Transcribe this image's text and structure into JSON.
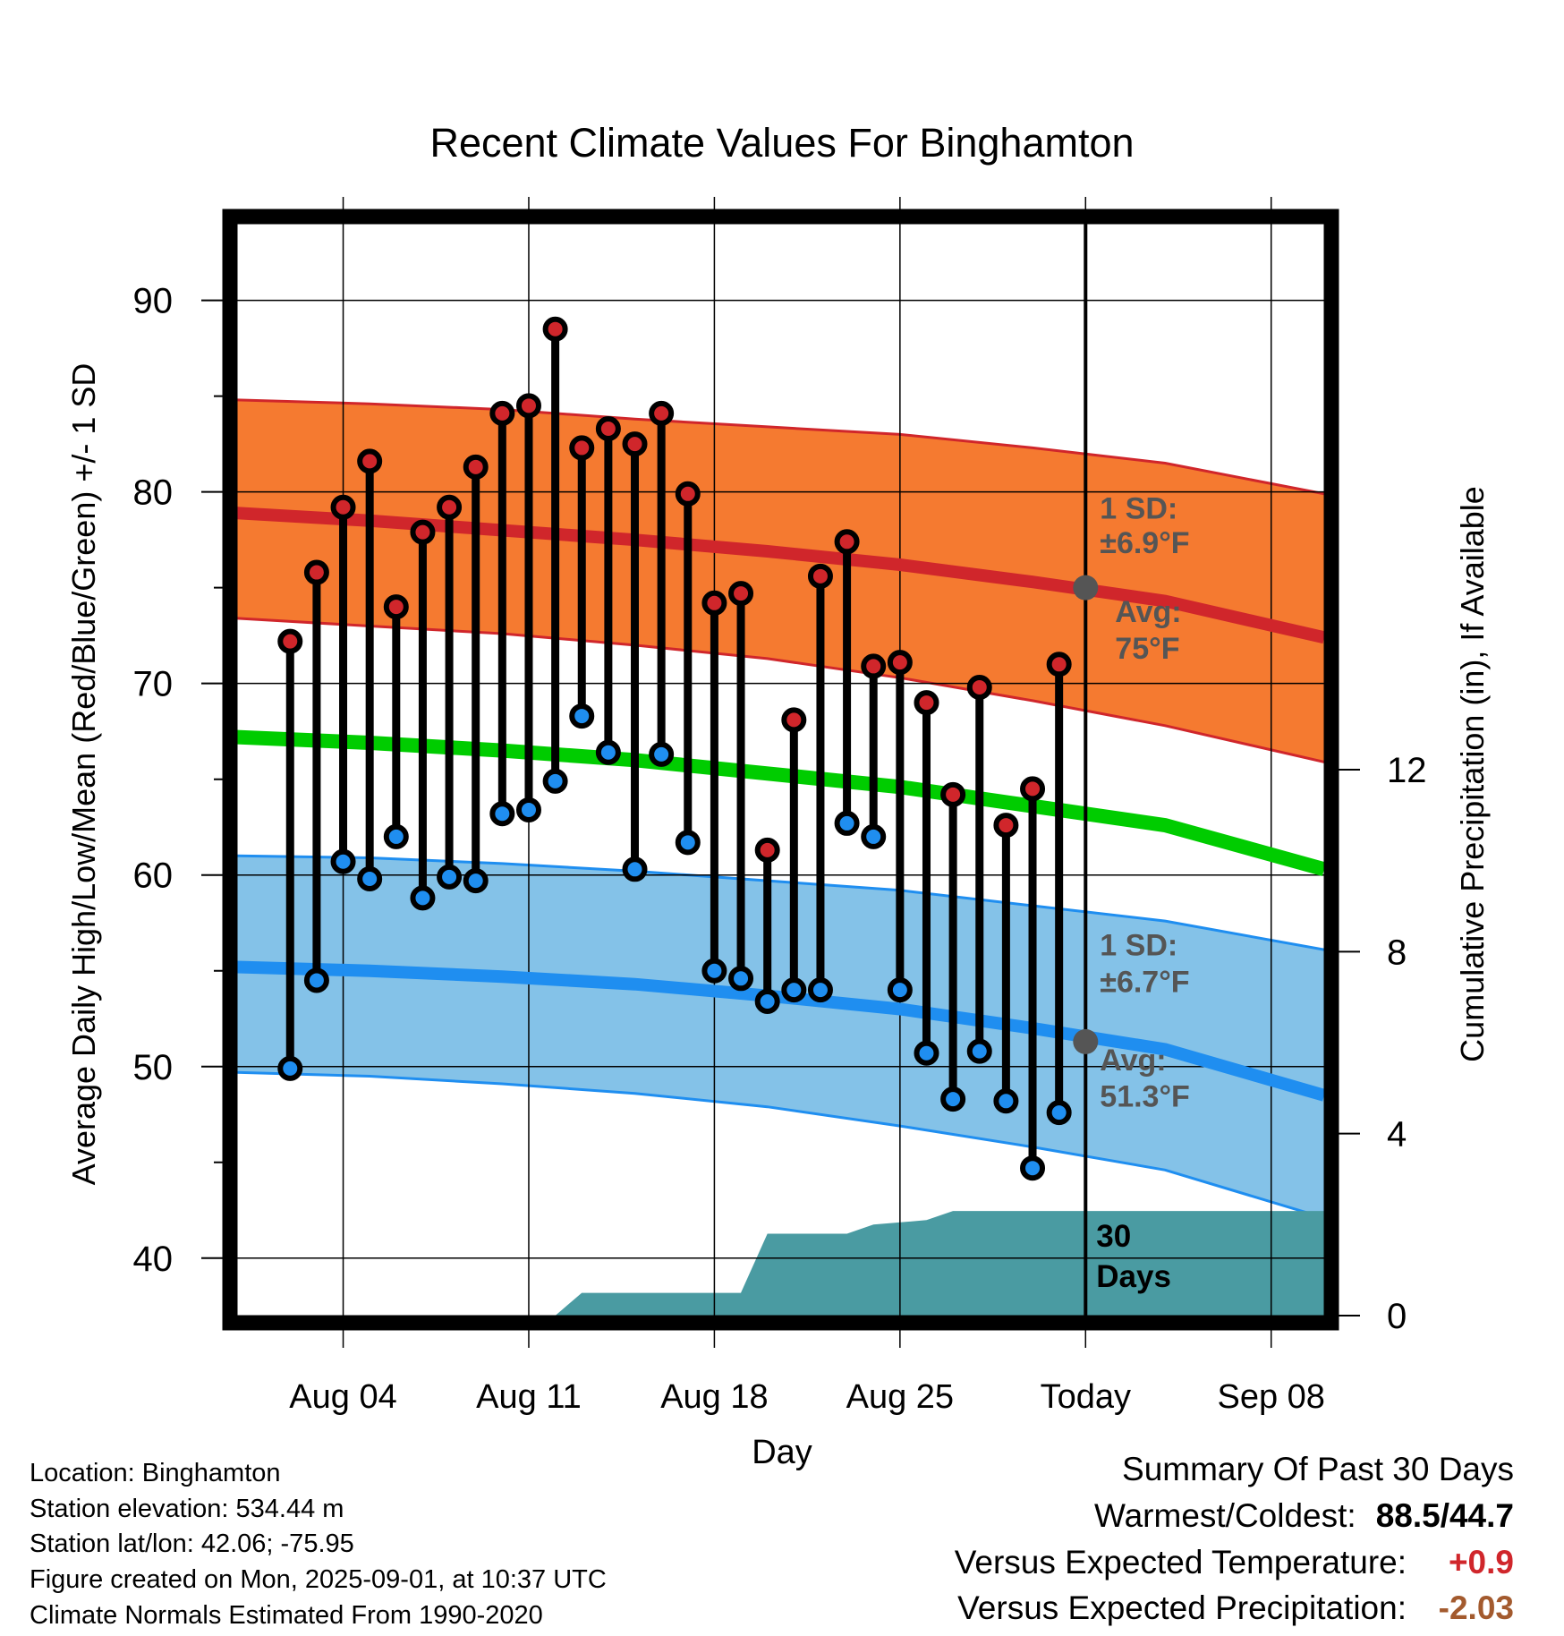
{
  "colors": {
    "high_band": "#f57a30",
    "high_line": "#d0262b",
    "low_band": "#84c2e8",
    "low_line": "#1f8ef0",
    "mean_line": "#00cc00",
    "precip": "#4a9ba2",
    "high_dot": "#d0262b",
    "low_dot": "#1f8ef0",
    "annotation": "#555555",
    "temp_anomaly": "#d0262b",
    "precip_anomaly": "#a35a2e"
  },
  "chart_data": {
    "type": "line",
    "title": "Recent Climate Values For Binghamton",
    "xlabel": "Day",
    "ylabel": "Average Daily High/Low/Mean (Red/Blue/Green) +/- 1 SD",
    "y2label": "Cumulative Precipitation (in), If Available",
    "ylim": [
      37,
      94
    ],
    "y2lim": [
      0,
      24
    ],
    "xlim": [
      "2025-07-31",
      "2025-09-10"
    ],
    "yticks": [
      40,
      50,
      60,
      70,
      80,
      90
    ],
    "y2ticks": [
      0,
      4,
      8,
      12
    ],
    "x_ticks": [
      {
        "date": "2025-08-04",
        "label": "Aug 04"
      },
      {
        "date": "2025-08-11",
        "label": "Aug 11"
      },
      {
        "date": "2025-08-18",
        "label": "Aug 18"
      },
      {
        "date": "2025-08-25",
        "label": "Aug 25"
      },
      {
        "date": "2025-09-01",
        "label": "Today"
      },
      {
        "date": "2025-09-08",
        "label": "Sep 08"
      }
    ],
    "today": "2025-09-01",
    "grid": true,
    "normals": {
      "dates": [
        "2025-07-31",
        "2025-08-05",
        "2025-08-10",
        "2025-08-15",
        "2025-08-20",
        "2025-08-25",
        "2025-08-30",
        "2025-09-04",
        "2025-09-10"
      ],
      "high_mean": [
        78.9,
        78.5,
        78.0,
        77.5,
        76.9,
        76.2,
        75.3,
        74.3,
        72.4
      ],
      "high_upper": [
        84.8,
        84.6,
        84.3,
        83.8,
        83.4,
        83.0,
        82.3,
        81.5,
        79.9
      ],
      "high_lower": [
        73.4,
        73.0,
        72.6,
        72.0,
        71.3,
        70.3,
        69.1,
        67.8,
        65.9
      ],
      "mean": [
        67.2,
        66.9,
        66.5,
        66.0,
        65.3,
        64.6,
        63.6,
        62.6,
        60.3
      ],
      "low_mean": [
        55.2,
        55.0,
        54.7,
        54.3,
        53.7,
        53.0,
        52.0,
        50.9,
        48.5
      ],
      "low_upper": [
        61.0,
        60.9,
        60.6,
        60.2,
        59.7,
        59.2,
        58.4,
        57.6,
        56.1
      ],
      "low_lower": [
        49.7,
        49.5,
        49.1,
        48.6,
        47.9,
        46.9,
        45.8,
        44.6,
        42.1
      ]
    },
    "series": [
      {
        "name": "High",
        "x": [
          "2025-08-02",
          "2025-08-03",
          "2025-08-04",
          "2025-08-05",
          "2025-08-06",
          "2025-08-07",
          "2025-08-08",
          "2025-08-09",
          "2025-08-10",
          "2025-08-11",
          "2025-08-12",
          "2025-08-13",
          "2025-08-14",
          "2025-08-15",
          "2025-08-16",
          "2025-08-17",
          "2025-08-18",
          "2025-08-19",
          "2025-08-20",
          "2025-08-21",
          "2025-08-22",
          "2025-08-23",
          "2025-08-24",
          "2025-08-25",
          "2025-08-26",
          "2025-08-27",
          "2025-08-28",
          "2025-08-29",
          "2025-08-30",
          "2025-08-31"
        ],
        "values": [
          72.2,
          75.8,
          79.2,
          81.6,
          74.0,
          77.9,
          79.2,
          81.3,
          84.1,
          84.5,
          88.5,
          82.3,
          83.3,
          82.5,
          84.1,
          79.9,
          74.2,
          74.7,
          61.3,
          68.1,
          75.6,
          77.4,
          70.9,
          71.1,
          69.0,
          64.2,
          69.8,
          62.6,
          64.5,
          71.0
        ]
      },
      {
        "name": "Low",
        "x": [
          "2025-08-02",
          "2025-08-03",
          "2025-08-04",
          "2025-08-05",
          "2025-08-06",
          "2025-08-07",
          "2025-08-08",
          "2025-08-09",
          "2025-08-10",
          "2025-08-11",
          "2025-08-12",
          "2025-08-13",
          "2025-08-14",
          "2025-08-15",
          "2025-08-16",
          "2025-08-17",
          "2025-08-18",
          "2025-08-19",
          "2025-08-20",
          "2025-08-21",
          "2025-08-22",
          "2025-08-23",
          "2025-08-24",
          "2025-08-25",
          "2025-08-26",
          "2025-08-27",
          "2025-08-28",
          "2025-08-29",
          "2025-08-30",
          "2025-08-31"
        ],
        "values": [
          49.9,
          54.5,
          60.7,
          59.8,
          62.0,
          58.8,
          59.9,
          59.7,
          63.2,
          63.4,
          64.9,
          68.3,
          66.4,
          60.3,
          66.3,
          61.7,
          55.0,
          54.6,
          53.4,
          54.0,
          54.0,
          62.7,
          62.0,
          54.0,
          50.7,
          48.3,
          50.8,
          48.2,
          44.7,
          47.6
        ]
      },
      {
        "name": "Cumulative Precipitation",
        "axis": "y2",
        "x": [
          "2025-07-31",
          "2025-08-12",
          "2025-08-13",
          "2025-08-19",
          "2025-08-20",
          "2025-08-23",
          "2025-08-24",
          "2025-08-26",
          "2025-08-27",
          "2025-09-10"
        ],
        "values": [
          0,
          0,
          0.5,
          0.5,
          1.8,
          1.8,
          2.0,
          2.1,
          2.3,
          2.3
        ]
      }
    ],
    "annotations": {
      "high_sd_title": "1 SD:",
      "high_sd": "±6.9°F",
      "high_avg_title": "Avg:",
      "high_avg": "75°F",
      "high_avg_value": 75.0,
      "low_sd_title": "1 SD:",
      "low_sd": "±6.7°F",
      "low_avg_title": "Avg:",
      "low_avg": "51.3°F",
      "low_avg_value": 51.3,
      "days_count": "30",
      "days_label": "Days"
    }
  },
  "info": {
    "location": "Location: Binghamton",
    "elevation": "Station elevation: 534.44 m",
    "latlon": "Station lat/lon: 42.06; -75.95",
    "created": "Figure created on Mon, 2025-09-01, at 10:37 UTC",
    "normals": "Climate Normals Estimated From 1990-2020"
  },
  "summary": {
    "title": "Summary Of Past 30 Days",
    "warm_cold_label": "Warmest/Coldest:",
    "warm_cold_value": "88.5/44.7",
    "temp_label": "Versus Expected Temperature:",
    "temp_value": "+0.9",
    "precip_label": "Versus Expected Precipitation:",
    "precip_value": "-2.03"
  }
}
